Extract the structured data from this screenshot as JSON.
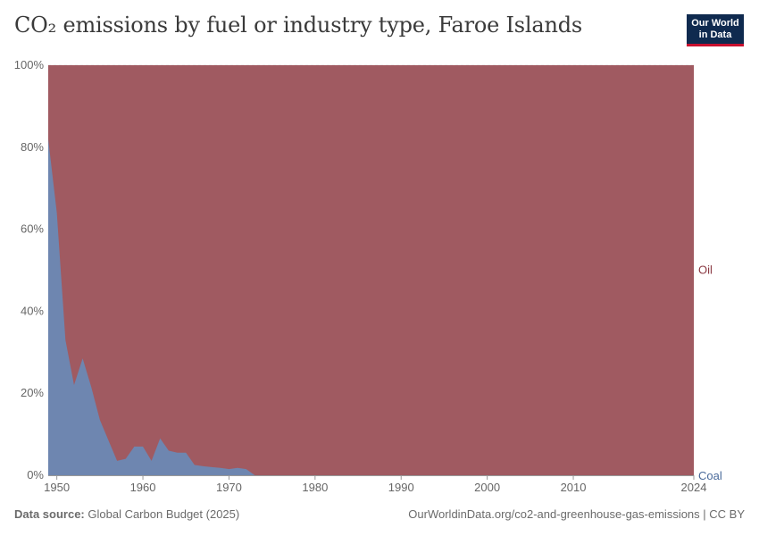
{
  "header": {
    "title": "CO₂ emissions by fuel or industry type, Faroe Islands",
    "logo_line1": "Our World",
    "logo_line2": "in Data"
  },
  "footer": {
    "source_label": "Data source:",
    "source_value": "Global Carbon Budget (2025)",
    "url_text": "OurWorldinData.org/co2-and-greenhouse-gas-emissions | CC BY"
  },
  "colors": {
    "oil": "#a05a61",
    "coal": "#6e86b0",
    "oil_label": "#8b3a43",
    "coal_label": "#4a6a9a"
  },
  "chart_data": {
    "type": "area",
    "stacked": true,
    "normalized": true,
    "title": "CO₂ emissions by fuel or industry type, Faroe Islands",
    "xlim": [
      1949,
      2024
    ],
    "ylim": [
      0,
      100
    ],
    "x_ticks": [
      "1950",
      "1960",
      "1970",
      "1980",
      "1990",
      "2000",
      "2010",
      "2024"
    ],
    "y_ticks": [
      "0%",
      "20%",
      "40%",
      "60%",
      "80%",
      "100%"
    ],
    "grid": "horizontal",
    "series": [
      {
        "name": "Coal",
        "points": [
          [
            1949,
            82
          ],
          [
            1950,
            64
          ],
          [
            1951,
            33
          ],
          [
            1952,
            22
          ],
          [
            1953,
            28.5
          ],
          [
            1954,
            21.5
          ],
          [
            1955,
            13.5
          ],
          [
            1956,
            8.5
          ],
          [
            1957,
            3.5
          ],
          [
            1958,
            4
          ],
          [
            1959,
            7
          ],
          [
            1960,
            7
          ],
          [
            1961,
            3.5
          ],
          [
            1962,
            9
          ],
          [
            1963,
            6
          ],
          [
            1964,
            5.5
          ],
          [
            1965,
            5.5
          ],
          [
            1966,
            2.5
          ],
          [
            1967,
            2.2
          ],
          [
            1968,
            2
          ],
          [
            1969,
            1.8
          ],
          [
            1970,
            1.5
          ],
          [
            1971,
            1.8
          ],
          [
            1972,
            1.5
          ],
          [
            1973,
            0
          ],
          [
            2024,
            0
          ]
        ]
      },
      {
        "name": "Oil",
        "fill_to": 100
      }
    ]
  }
}
